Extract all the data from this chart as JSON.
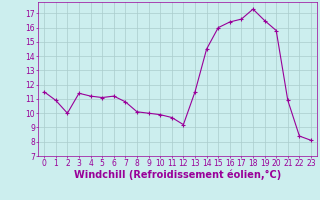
{
  "hours": [
    0,
    1,
    2,
    3,
    4,
    5,
    6,
    7,
    8,
    9,
    10,
    11,
    12,
    13,
    14,
    15,
    16,
    17,
    18,
    19,
    20,
    21,
    22,
    23
  ],
  "values": [
    11.5,
    10.9,
    10.0,
    11.4,
    11.2,
    11.1,
    11.2,
    10.8,
    10.1,
    10.0,
    9.9,
    9.7,
    9.2,
    11.5,
    14.5,
    16.0,
    16.4,
    16.6,
    17.3,
    16.5,
    15.8,
    10.9,
    8.4,
    8.1
  ],
  "line_color": "#990099",
  "marker": "+",
  "bg_color": "#cceeee",
  "grid_color": "#aacccc",
  "xlabel": "Windchill (Refroidissement éolien,°C)",
  "xlabel_color": "#990099",
  "xlim": [
    -0.5,
    23.5
  ],
  "ylim": [
    7,
    17.8
  ],
  "yticks": [
    7,
    8,
    9,
    10,
    11,
    12,
    13,
    14,
    15,
    16,
    17
  ],
  "xticks": [
    0,
    1,
    2,
    3,
    4,
    5,
    6,
    7,
    8,
    9,
    10,
    11,
    12,
    13,
    14,
    15,
    16,
    17,
    18,
    19,
    20,
    21,
    22,
    23
  ],
  "tick_color": "#990099",
  "tick_fontsize": 5.5,
  "xlabel_fontsize": 7.0,
  "linewidth": 0.8,
  "markersize": 2.5
}
